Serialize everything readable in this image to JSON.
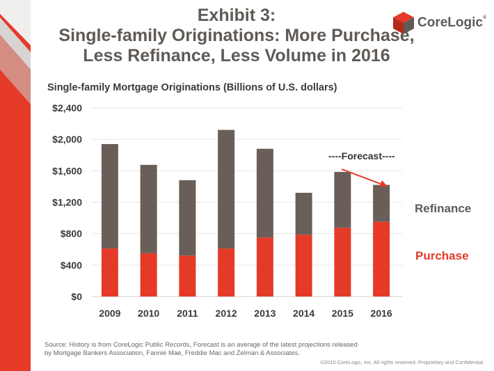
{
  "header": {
    "title_line1": "Exhibit 3:",
    "title_line2": "Single-family Originations:  More Purchase,",
    "title_line3": "Less Refinance, Less Volume in 2016",
    "logo_text": "CoreLogic",
    "logo_mark": "®"
  },
  "colors": {
    "purchase": "#e53a28",
    "refinance": "#6a5f58",
    "title": "#5f5a56",
    "accent_red": "#e53a28"
  },
  "chart_data": {
    "type": "bar",
    "stacked": true,
    "title": "Single-family Mortgage Originations (Billions of U.S. dollars)",
    "categories": [
      "2009",
      "2010",
      "2011",
      "2012",
      "2013",
      "2014",
      "2015",
      "2016"
    ],
    "series": [
      {
        "name": "Purchase",
        "values": [
          610,
          550,
          520,
          610,
          750,
          785,
          875,
          950
        ]
      },
      {
        "name": "Refinance",
        "values": [
          1330,
          1125,
          960,
          1510,
          1130,
          535,
          710,
          470
        ]
      }
    ],
    "totals": [
      1940,
      1675,
      1480,
      2120,
      1880,
      1320,
      1585,
      1420
    ],
    "ylim": [
      0,
      2400
    ],
    "yticks": [
      0,
      400,
      800,
      1200,
      1600,
      2000,
      2400
    ],
    "ytick_labels": [
      "$0",
      "$400",
      "$800",
      "$1,200",
      "$1,600",
      "$2,000",
      "$2,400"
    ],
    "grid": true,
    "annotation": "----Forecast----",
    "legend_refinance": "Refinance",
    "legend_purchase": "Purchase"
  },
  "footer": {
    "source_line1": "Source: History is from CoreLogic Public Records, Forecast is an average of the latest projections released",
    "source_line2": "by Mortgage Bankers Association, Fannie Mae, Freddie Mac and Zelman & Associates.",
    "copyright": "©2015 CoreLogic, Inc. All rights reserved. Proprietary and Confidential."
  }
}
